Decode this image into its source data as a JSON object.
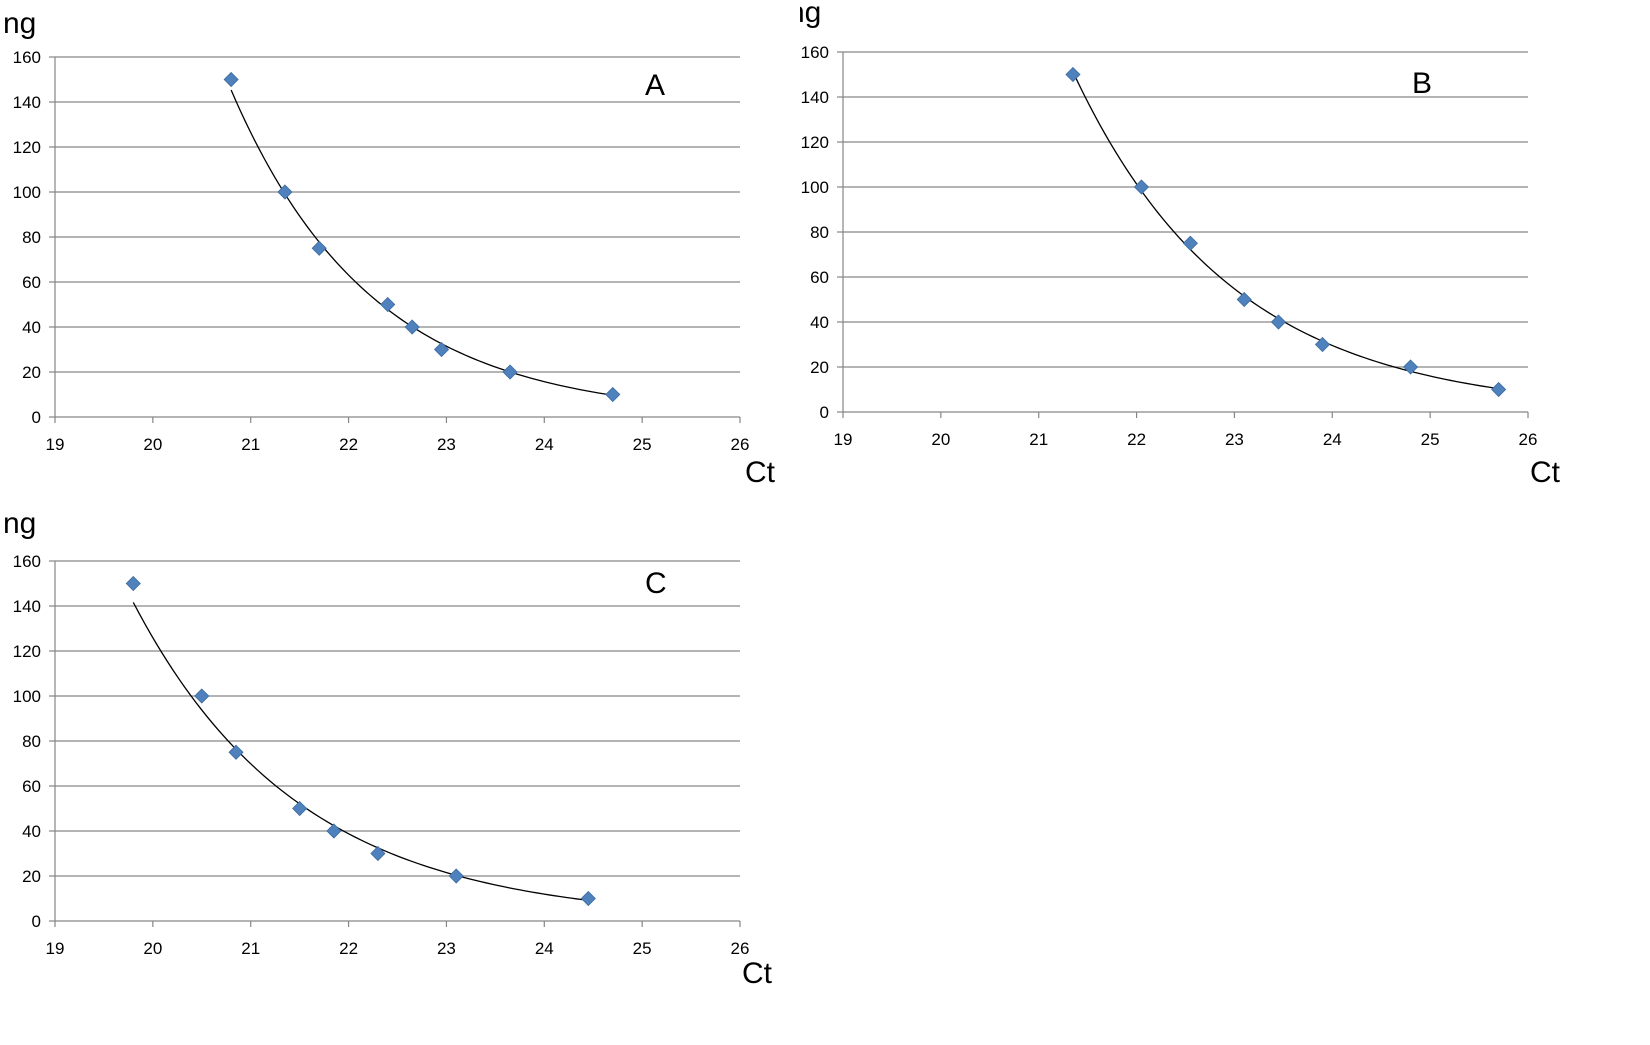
{
  "chart_data": [
    {
      "type": "scatter",
      "title": "A",
      "xlabel": "Ct",
      "ylabel": "ng",
      "xlim": [
        19,
        26
      ],
      "ylim": [
        0,
        160
      ],
      "xticks": [
        "19",
        "20",
        "21",
        "22",
        "23",
        "24",
        "25",
        "26"
      ],
      "yticks": [
        "0",
        "20",
        "40",
        "60",
        "80",
        "100",
        "120",
        "140",
        "160"
      ],
      "grid": "horizontal",
      "marker_color": "#4f81bd",
      "trendline_color": "#000000",
      "trendline": "exponential",
      "x": [
        20.8,
        21.35,
        21.7,
        22.4,
        22.65,
        22.95,
        23.65,
        24.7
      ],
      "y": [
        150,
        100,
        75,
        50,
        40,
        30,
        20,
        10
      ]
    },
    {
      "type": "scatter",
      "title": "B",
      "xlabel": "Ct",
      "ylabel": "ng",
      "xlim": [
        19,
        26
      ],
      "ylim": [
        0,
        160
      ],
      "xticks": [
        "19",
        "20",
        "21",
        "22",
        "23",
        "24",
        "25",
        "26"
      ],
      "yticks": [
        "0",
        "20",
        "40",
        "60",
        "80",
        "100",
        "120",
        "140",
        "160"
      ],
      "grid": "horizontal",
      "marker_color": "#4f81bd",
      "trendline_color": "#000000",
      "trendline": "exponential",
      "x": [
        21.35,
        22.05,
        22.55,
        23.1,
        23.45,
        23.9,
        24.8,
        25.7
      ],
      "y": [
        150,
        100,
        75,
        50,
        40,
        30,
        20,
        10
      ]
    },
    {
      "type": "scatter",
      "title": "C",
      "xlabel": "Ct",
      "ylabel": "ng",
      "xlim": [
        19,
        26
      ],
      "ylim": [
        0,
        160
      ],
      "xticks": [
        "19",
        "20",
        "21",
        "22",
        "23",
        "24",
        "25",
        "26"
      ],
      "yticks": [
        "0",
        "20",
        "40",
        "60",
        "80",
        "100",
        "120",
        "140",
        "160"
      ],
      "grid": "horizontal",
      "marker_color": "#4f81bd",
      "trendline_color": "#000000",
      "trendline": "exponential",
      "x": [
        19.8,
        20.5,
        20.85,
        21.5,
        21.85,
        22.3,
        23.1,
        24.45
      ],
      "y": [
        150,
        100,
        75,
        50,
        40,
        30,
        20,
        10
      ]
    }
  ]
}
